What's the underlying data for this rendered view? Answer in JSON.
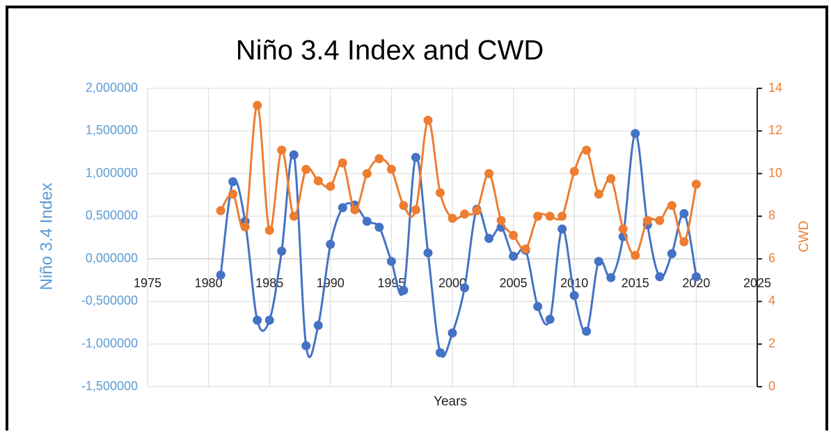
{
  "chart_data": {
    "type": "line",
    "title": "Niño 3.4 Index and CWD",
    "xlabel": "Years",
    "ylabel": "Niño 3.4 Index",
    "y2label": "CWD",
    "x": [
      1981,
      1982,
      1983,
      1984,
      1985,
      1986,
      1987,
      1988,
      1989,
      1990,
      1991,
      1992,
      1993,
      1994,
      1995,
      1996,
      1997,
      1998,
      1999,
      2000,
      2001,
      2002,
      2003,
      2004,
      2005,
      2006,
      2007,
      2008,
      2009,
      2010,
      2011,
      2012,
      2013,
      2014,
      2015,
      2016,
      2017,
      2018,
      2019,
      2020
    ],
    "series": [
      {
        "name": "Niño 3.4 Index",
        "color": "#4472c4",
        "axis": "y",
        "values": [
          -0.19,
          0.905,
          0.44,
          -0.72,
          -0.72,
          0.09,
          1.22,
          -1.02,
          -0.78,
          0.17,
          0.6,
          0.63,
          0.44,
          0.37,
          -0.03,
          -0.37,
          1.19,
          0.07,
          -1.1,
          -0.87,
          -0.34,
          0.58,
          0.24,
          0.37,
          0.03,
          0.1,
          -0.56,
          -0.71,
          0.35,
          -0.43,
          -0.85,
          -0.03,
          -0.22,
          0.26,
          1.47,
          0.4,
          -0.21,
          0.06,
          0.53,
          -0.21
        ]
      },
      {
        "name": "CWD",
        "color": "#ed7d31",
        "axis": "y2",
        "values": [
          8.26,
          9.04,
          7.5,
          13.2,
          7.34,
          11.1,
          8.0,
          10.2,
          9.66,
          9.4,
          10.5,
          8.3,
          10.0,
          10.7,
          10.2,
          8.5,
          8.3,
          12.5,
          9.1,
          7.9,
          8.1,
          8.26,
          10.0,
          7.8,
          7.1,
          6.46,
          8.0,
          8.0,
          8.0,
          10.1,
          11.1,
          9.04,
          9.76,
          7.4,
          6.16,
          7.8,
          7.8,
          8.5,
          6.8,
          9.5
        ]
      }
    ],
    "xlim": [
      1975,
      2025
    ],
    "xticks": [
      1975,
      1980,
      1985,
      1990,
      1995,
      2000,
      2005,
      2010,
      2015,
      2020,
      2025
    ],
    "ylim": [
      -1.5,
      2
    ],
    "yticks": [
      {
        "value": 2,
        "label": "2,000000"
      },
      {
        "value": 1.5,
        "label": "1,500000"
      },
      {
        "value": 1,
        "label": "1,000000"
      },
      {
        "value": 0.5,
        "label": "0,500000"
      },
      {
        "value": 0,
        "label": "0,000000"
      },
      {
        "value": -0.5,
        "label": "-0,500000"
      },
      {
        "value": -1,
        "label": "-1,000000"
      },
      {
        "value": -1.5,
        "label": "-1,500000"
      }
    ],
    "y2lim": [
      0,
      14
    ],
    "y2ticks": [
      0,
      2,
      4,
      6,
      8,
      10,
      12,
      14
    ],
    "grid": true,
    "smooth": true
  }
}
